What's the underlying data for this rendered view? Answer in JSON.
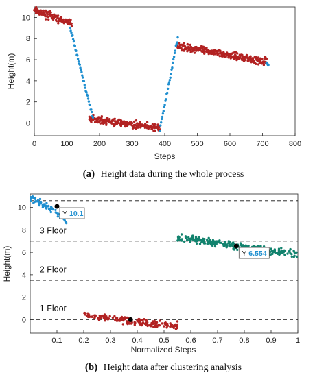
{
  "chart_data": [
    {
      "type": "scatter",
      "panel": "a",
      "caption_label": "(a)",
      "caption_text": "Height data during the whole process",
      "xlabel": "Steps",
      "ylabel": "Height(m)",
      "xlim": [
        0,
        800
      ],
      "ylim": [
        -1.2,
        11
      ],
      "xticks": [
        0,
        100,
        200,
        300,
        400,
        500,
        600,
        700,
        800
      ],
      "yticks": [
        0,
        2,
        4,
        6,
        8,
        10
      ],
      "grid": false,
      "series": [
        {
          "color": "#b22222",
          "segments": [
            {
              "x": [
                0,
                115
              ],
              "y": [
                10.7,
                9.4
              ]
            },
            {
              "x": [
                168,
                385
              ],
              "y": [
                0.4,
                -0.5
              ]
            },
            {
              "x": [
                438,
                712
              ],
              "y": [
                7.3,
                5.8
              ]
            }
          ]
        },
        {
          "color": "#1f8fd0",
          "segments": [
            {
              "x": [
                110,
                180
              ],
              "y": [
                9.0,
                0.5
              ]
            },
            {
              "x": [
                385,
                440
              ],
              "y": [
                -0.6,
                8.0
              ]
            },
            {
              "x": [
                712,
                718
              ],
              "y": [
                5.8,
                5.5
              ]
            }
          ]
        }
      ]
    },
    {
      "type": "scatter",
      "panel": "b",
      "caption_label": "(b)",
      "caption_text": "Height data after clustering analysis",
      "xlabel": "Normalized Steps",
      "ylabel": "Height(m)",
      "xlim": [
        0,
        1
      ],
      "ylim": [
        -1.2,
        11.2
      ],
      "xticks": [
        "0.1",
        "0.2",
        "0.3",
        "0.4",
        "0.5",
        "0.6",
        "0.7",
        "0.8",
        "0.9",
        "1"
      ],
      "yticks": [
        0,
        2,
        4,
        6,
        8,
        10
      ],
      "grid": false,
      "hlines": [
        10.6,
        7.0,
        3.5,
        0.0
      ],
      "floor_labels": [
        {
          "text": "3 Floor",
          "x": 0.02,
          "y": 7.7
        },
        {
          "text": "2 Floor",
          "x": 0.02,
          "y": 4.2
        },
        {
          "text": "1 Floor",
          "x": 0.02,
          "y": 0.75
        }
      ],
      "clusters": [
        {
          "color": "#1f8fd0",
          "x": [
            0.0,
            0.12
          ],
          "y": [
            10.9,
            9.3
          ],
          "extra_x": [
            0.12,
            0.135
          ],
          "extra_y": [
            9.2,
            8.6
          ]
        },
        {
          "color": "#b22222",
          "x": [
            0.2,
            0.55
          ],
          "y": [
            0.4,
            -0.6
          ]
        },
        {
          "color": "#13836e",
          "x": [
            0.55,
            1.0
          ],
          "y": [
            7.3,
            5.8
          ]
        }
      ],
      "markers": [
        {
          "x": 0.1,
          "y": 10.1,
          "label": "Y",
          "value": "10.1"
        },
        {
          "x": 0.77,
          "y": 6.554,
          "label": "Y",
          "value": "6.554"
        },
        {
          "x": 0.375,
          "y": 0.0
        }
      ]
    }
  ]
}
